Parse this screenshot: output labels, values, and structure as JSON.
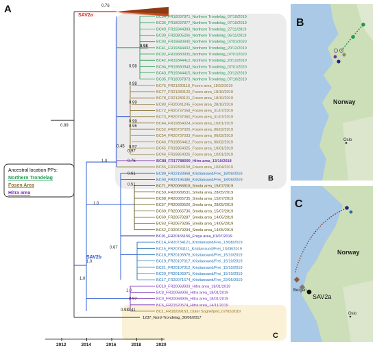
{
  "panels": {
    "a": "A",
    "b": "B",
    "c": "C",
    "b_inner": "B",
    "c_inner": "C"
  },
  "clades": {
    "sav2a": "SAV2a",
    "sav2b": "SAV2b"
  },
  "colors": {
    "northern": "#1d9c4d",
    "fosen": "#8b7230",
    "hitra": "#7a2fb5",
    "smola": "#5c4d10",
    "kristiansund": "#1f6fb0",
    "froya": "#2a1f8a",
    "nord": "#111111",
    "sav2a_branch": "#e0241b",
    "sav2b_branch": "#1f4fcf",
    "highlight_b": "#ececec",
    "highlight_c": "#fbf1d6"
  },
  "legend": {
    "title": "Ancestral location PPs:",
    "items": [
      {
        "label": "Northern Trondelag",
        "key": "northern"
      },
      {
        "label": "Fosen Area",
        "key": "fosen"
      },
      {
        "label": "Hitra area",
        "key": "hitra"
      }
    ]
  },
  "tips": [
    {
      "label": "BC34_FR18037871_Northern Trondelag_07/10/2019",
      "key": "northern"
    },
    {
      "label": "BC36_FR18037877_Northern Trondelag_07/10/2019",
      "key": "northern"
    },
    {
      "label": "BC40_FR19344393_Northern Trondelag_27/11/2019",
      "key": "northern"
    },
    {
      "label": "BC39_FR20805266_Northern Trondelag_06/11/2019",
      "key": "northern"
    },
    {
      "label": "BC93_FR19680940_Northern Trondelag_07/01/2020",
      "key": "northern"
    },
    {
      "label": "BC41_FR19344402_Northern Trondelag_20/12/2019",
      "key": "northern"
    },
    {
      "label": "BC92_FR19680930_Northern Trondelag_07/01/2020",
      "key": "northern"
    },
    {
      "label": "BC42_FR19344412_Northern Trondelag_20/12/2019",
      "key": "northern"
    },
    {
      "label": "BC94_FR19680943_Northern Trondelag_07/01/2020",
      "key": "northern"
    },
    {
      "label": "BC43_FR19344415_Northern Trondelag_20/12/2019",
      "key": "northern"
    },
    {
      "label": "BC35_FR18037873_Northern Trondelag_07/10/2019",
      "key": "northern"
    },
    {
      "label": "BC76_FR21280118_Fosen area_18/10/2019",
      "key": "fosen"
    },
    {
      "label": "BC77_FR21280120_Fosen area_18/10/2019",
      "key": "fosen"
    },
    {
      "label": "BC78_FR21280121_Fosen area_18/10/2019",
      "key": "fosen"
    },
    {
      "label": "BC80_FR20041245_Fosen area_28/10/2019",
      "key": "fosen"
    },
    {
      "label": "BC72_FR20737058_Fosen area_31/07/2019",
      "key": "fosen"
    },
    {
      "label": "BC73_FR20737060_Fosen area_31/07/2019",
      "key": "fosen"
    },
    {
      "label": "BC44_FR19854024_Fosen area_10/01/2019",
      "key": "fosen"
    },
    {
      "label": "BC52_FR20737026_Fosen area_06/02/2019",
      "key": "fosen"
    },
    {
      "label": "BC54_FR20737033_Fosen area_06/02/2019",
      "key": "fosen"
    },
    {
      "label": "BC46_FR19854412_Fosen area_06/02/2019",
      "key": "fosen"
    },
    {
      "label": "BC45_FR19854025_Fosen area_10/01/2019",
      "key": "fosen"
    },
    {
      "label": "BC46_FR19854026_Fosen area_10/01/2019",
      "key": "fosen"
    },
    {
      "label": "BC88_FR17788099_Hitra area_13/10/2018",
      "key": "hitra"
    },
    {
      "label": "BC55_FR19393158_Fosen area_10/04/2019",
      "key": "fosen"
    },
    {
      "label": "BC89_FR22183968_Kristiansund/Frei_18/09/2019",
      "key": "kristiansund"
    },
    {
      "label": "BC90_FR22196486_Kristiansund/Frei_18/09/2019",
      "key": "kristiansund"
    },
    {
      "label": "BC71_FR20065818_Smola area_15/07/2019",
      "key": "smola"
    },
    {
      "label": "BC59_FR20689531_Smola area_28/05/2019",
      "key": "smola"
    },
    {
      "label": "BC68_FR20065735_Smola area_15/07/2019",
      "key": "smola"
    },
    {
      "label": "BC57_FR20689526_Smola area_28/05/2019",
      "key": "smola"
    },
    {
      "label": "BC69_FR20065736_Smola area_15/07/2019",
      "key": "smola"
    },
    {
      "label": "BC60_FR20679287_Smola area_14/05/2019",
      "key": "smola"
    },
    {
      "label": "BC63_FR20679295_Smola area_14/05/2019",
      "key": "smola"
    },
    {
      "label": "BC62_FR20679294_Smola area_14/05/2019",
      "key": "smola"
    },
    {
      "label": "BC91_FR20165156_Froya area_01/07/2019",
      "key": "froya"
    },
    {
      "label": "BC14_FR20734121_Kristiansund/Frei_13/08/2019",
      "key": "kristiansund"
    },
    {
      "label": "BC15_FR20734111_Kristiansund/Frei_13/08/2019",
      "key": "kristiansund"
    },
    {
      "label": "BC18_FR20106976_Kristiansund/Frei_15/10/2019",
      "key": "kristiansund"
    },
    {
      "label": "BC19_FR20107017_Kristiansund/Frei_15/10/2019",
      "key": "kristiansund"
    },
    {
      "label": "BC21_FR20107012_Kristiansund/Frei_15/10/2019",
      "key": "kristiansund"
    },
    {
      "label": "BC20_FR20106971_Kristiansund/Frei_15/10/2019",
      "key": "kristiansund"
    },
    {
      "label": "BC17_FR20071674_Kristiansund/Frei_22/05/2019",
      "key": "kristiansund"
    },
    {
      "label": "BC10_FR20068903_Hitra area_18/01/2019",
      "key": "hitra"
    },
    {
      "label": "BC8_FR20068906_Hitra area_18/01/2019",
      "key": "hitra"
    },
    {
      "label": "BC9_FR20068905_Hitra area_18/01/2019",
      "key": "hitra"
    },
    {
      "label": "BC6_FR21520574_Hitra area_14/11/2019",
      "key": "hitra"
    },
    {
      "label": "BC1_FR18299163_Outer Sognefjord_07/02/2019",
      "key": "fosen"
    },
    {
      "label": "1237_Nord-Trondelag_30/06/2017",
      "key": "nord"
    }
  ],
  "node_labels": [
    {
      "text": "0.76"
    },
    {
      "text": "0.89"
    },
    {
      "text": "1.0"
    },
    {
      "text": "0.98"
    },
    {
      "text": "0.98"
    },
    {
      "text": "0.98"
    },
    {
      "text": "0.99"
    },
    {
      "text": "0.99"
    },
    {
      "text": "0.96"
    },
    {
      "text": "0.97"
    },
    {
      "text": "0.45"
    },
    {
      "text": "0.97"
    },
    {
      "text": "1.0"
    },
    {
      "text": "0.75"
    },
    {
      "text": "0.61"
    },
    {
      "text": "0.51"
    },
    {
      "text": "1.0"
    },
    {
      "text": "0.67"
    },
    {
      "text": "1.0"
    },
    {
      "text": "1.0"
    },
    {
      "text": "0.97"
    },
    {
      "text": "0.93"
    },
    {
      "text": "0.41"
    }
  ],
  "axis": {
    "ticks": [
      "2012",
      "2014",
      "2016",
      "2018",
      "2020"
    ]
  },
  "map_b": {
    "country": "Norway",
    "cities": [
      "Oslo"
    ]
  },
  "map_c": {
    "country": "Norway",
    "cities": [
      "Bergen",
      "Oslo"
    ],
    "clade": "SAV2a"
  }
}
